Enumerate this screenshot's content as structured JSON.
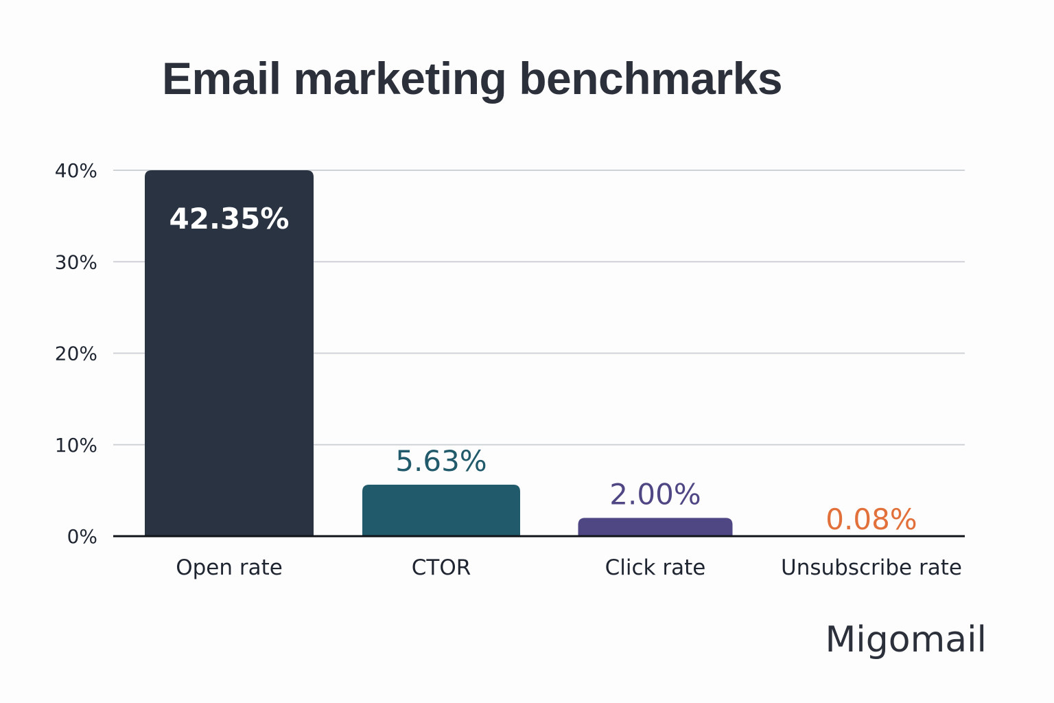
{
  "chart_data": {
    "type": "bar",
    "title": "Email marketing benchmarks",
    "xlabel": "",
    "ylabel": "",
    "categories": [
      "Open rate",
      "CTOR",
      "Click rate",
      "Unsubscribe rate"
    ],
    "values": [
      42.35,
      5.63,
      2.0,
      0.08
    ],
    "value_labels": [
      "42.35%",
      "5.63%",
      "2.00%",
      "0.08%"
    ],
    "colors": [
      "#2a3341",
      "#215a6b",
      "#4e4784",
      "#e2703a"
    ],
    "label_colors": [
      "#ffffff",
      "#215a6b",
      "#4e4784",
      "#e2703a"
    ],
    "ylim": [
      0,
      40
    ],
    "yticks": [
      0,
      10,
      20,
      30,
      40
    ],
    "ytick_labels": [
      "0%",
      "10%",
      "20%",
      "30%",
      "40%"
    ],
    "grid": true,
    "legend": "none"
  },
  "brand": "Migomail"
}
